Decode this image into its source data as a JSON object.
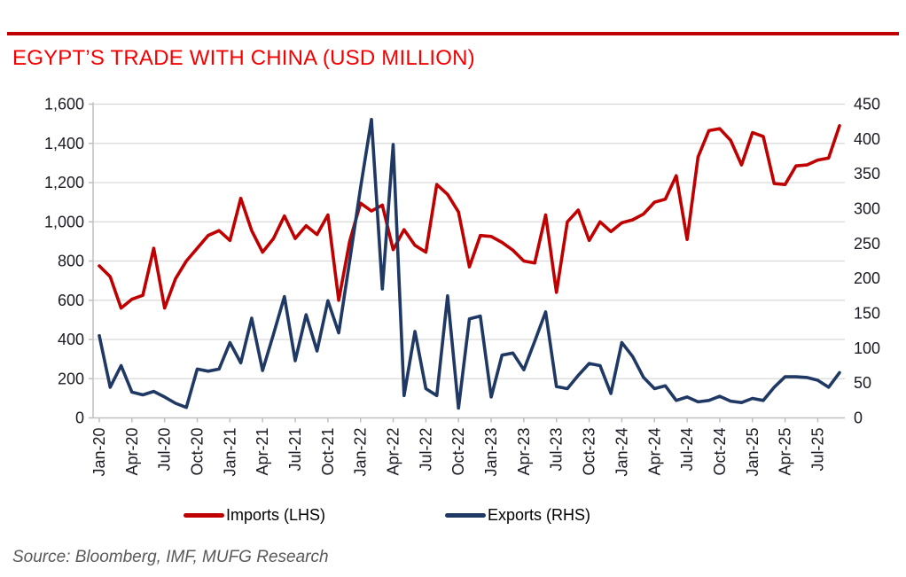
{
  "header": {
    "title": "EGYPT’S TRADE WITH CHINA (USD MILLION)"
  },
  "legend": {
    "imports_label": "Imports (LHS)",
    "exports_label": "Exports (RHS)"
  },
  "footer": {
    "source": "Source: Bloomberg, IMF, MUFG Research"
  },
  "colors": {
    "title_red": "#F50000",
    "rule_red": "#C00000",
    "imports_line": "#C00000",
    "exports_line": "#1F3864",
    "gridline": "#D9D9D9",
    "axis_line": "#BFBFBF",
    "axis_text": "#1A1A24",
    "source_text": "#595959"
  },
  "chart_data": {
    "type": "line",
    "title": "EGYPT’S TRADE WITH CHINA (USD MILLION)",
    "grid": "horizontal",
    "legend_position": "bottom",
    "x": [
      "Jan-20",
      "Feb-20",
      "Mar-20",
      "Apr-20",
      "May-20",
      "Jun-20",
      "Jul-20",
      "Aug-20",
      "Sep-20",
      "Oct-20",
      "Nov-20",
      "Dec-20",
      "Jan-21",
      "Feb-21",
      "Mar-21",
      "Apr-21",
      "May-21",
      "Jun-21",
      "Jul-21",
      "Aug-21",
      "Sep-21",
      "Oct-21",
      "Nov-21",
      "Dec-21",
      "Jan-22",
      "Feb-22",
      "Mar-22",
      "Apr-22",
      "May-22",
      "Jun-22",
      "Jul-22",
      "Aug-22",
      "Sep-22",
      "Oct-22",
      "Nov-22",
      "Dec-22",
      "Jan-23",
      "Feb-23",
      "Mar-23",
      "Apr-23",
      "May-23",
      "Jun-23",
      "Jul-23",
      "Aug-23",
      "Sep-23",
      "Oct-23",
      "Nov-23",
      "Dec-23",
      "Jan-24",
      "Feb-24",
      "Mar-24",
      "Apr-24",
      "May-24",
      "Jun-24",
      "Jul-24",
      "Aug-24",
      "Sep-24",
      "Oct-24",
      "Nov-24",
      "Dec-24",
      "Jan-25",
      "Feb-25",
      "Mar-25",
      "Apr-25",
      "May-25",
      "Jun-25",
      "Jul-25",
      "Aug-25",
      "Sep-25"
    ],
    "x_tick_labels_shown": [
      "Jan-20",
      "Apr-20",
      "Jul-20",
      "Oct-20",
      "Jan-21",
      "Apr-21",
      "Jul-21",
      "Oct-21",
      "Jan-22",
      "Apr-22",
      "Jul-22",
      "Oct-22",
      "Jan-23",
      "Apr-23",
      "Jul-23",
      "Oct-23",
      "Jan-24",
      "Apr-24",
      "Jul-24",
      "Oct-24",
      "Jan-25",
      "Apr-25",
      "Jul-25"
    ],
    "x_tick_every_n_months": 3,
    "series": [
      {
        "name": "Imports (LHS)",
        "axis": "left",
        "color": "#C00000",
        "values": [
          775,
          720,
          560,
          605,
          625,
          865,
          560,
          710,
          800,
          865,
          930,
          955,
          905,
          1120,
          955,
          845,
          915,
          1030,
          915,
          980,
          935,
          1035,
          600,
          900,
          1095,
          1055,
          1085,
          858,
          960,
          880,
          845,
          1190,
          1140,
          1050,
          770,
          930,
          925,
          895,
          855,
          800,
          790,
          1035,
          640,
          1000,
          1060,
          905,
          1000,
          950,
          995,
          1010,
          1040,
          1100,
          1115,
          1235,
          910,
          1330,
          1465,
          1475,
          1415,
          1290,
          1455,
          1435,
          1195,
          1190,
          1285,
          1290,
          1315,
          1325,
          1490
        ]
      },
      {
        "name": "Exports (RHS)",
        "axis": "right",
        "color": "#1F3864",
        "values": [
          118,
          44,
          75,
          37,
          33,
          38,
          30,
          21,
          15,
          70,
          67,
          70,
          108,
          79,
          143,
          68,
          120,
          174,
          82,
          148,
          96,
          168,
          122,
          225,
          330,
          428,
          185,
          392,
          32,
          124,
          42,
          32,
          175,
          14,
          142,
          146,
          30,
          90,
          93,
          69,
          110,
          152,
          45,
          42,
          61,
          78,
          75,
          35,
          108,
          88,
          58,
          42,
          46,
          25,
          30,
          23,
          25,
          31,
          24,
          22,
          28,
          25,
          44,
          59,
          59,
          58,
          54,
          44,
          65
        ]
      }
    ],
    "left_axis": {
      "min": 0,
      "max": 1600,
      "step": 200,
      "tick_labels": [
        "0",
        "200",
        "400",
        "600",
        "800",
        "1,000",
        "1,200",
        "1,400",
        "1,600"
      ]
    },
    "right_axis": {
      "min": 0,
      "max": 450,
      "step": 50,
      "tick_labels": [
        "0",
        "50",
        "100",
        "150",
        "200",
        "250",
        "300",
        "350",
        "400",
        "450"
      ]
    }
  }
}
